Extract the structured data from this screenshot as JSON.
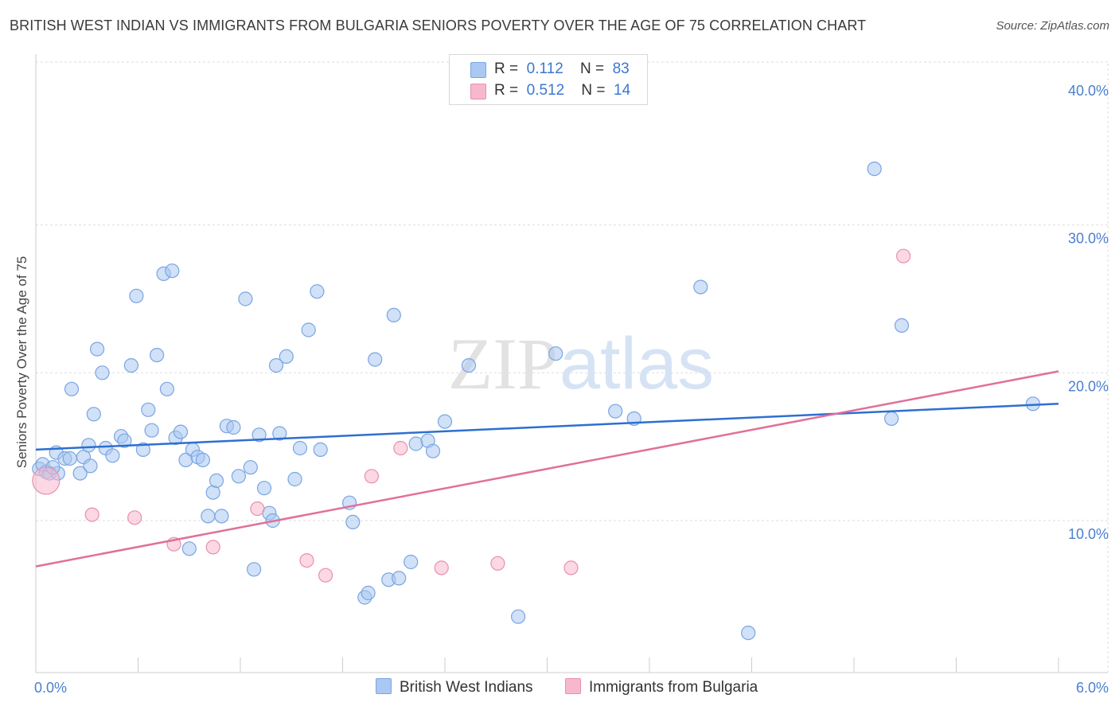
{
  "title": "BRITISH WEST INDIAN VS IMMIGRANTS FROM BULGARIA SENIORS POVERTY OVER THE AGE OF 75 CORRELATION CHART",
  "source": "Source: ZipAtlas.com",
  "watermark": {
    "zip": "ZIP",
    "atlas": "atlas"
  },
  "legend_stats": [
    {
      "r_label": "R =",
      "r_value": "0.112",
      "n_label": "N =",
      "n_value": "83"
    },
    {
      "r_label": "R =",
      "r_value": "0.512",
      "n_label": "N =",
      "n_value": "14"
    }
  ],
  "colors": {
    "blue_fill": "#a9c9f2",
    "blue_stroke": "#7aa5e0",
    "blue_line": "#2e6fd0",
    "pink_fill": "#f7b8cc",
    "pink_stroke": "#e890ad",
    "pink_line": "#e0709a",
    "tick_text": "#4a7fd0",
    "grid": "#dddddd"
  },
  "chart_data": {
    "type": "scatter",
    "ylabel": "Seniors Poverty Over the Age of 75",
    "xlim": [
      0,
      6
    ],
    "ylim": [
      0,
      40
    ],
    "x_tick_labels": [
      "0.0%",
      "6.0%"
    ],
    "y_ticks": [
      10,
      20,
      30,
      40
    ],
    "y_tick_labels": [
      "10.0%",
      "20.0%",
      "30.0%",
      "40.0%"
    ],
    "grid": true,
    "legend_position": "top-center",
    "series": [
      {
        "name": "British West Indians",
        "color": "#a9c9f2",
        "trend": {
          "x": [
            0,
            6
          ],
          "y": [
            14.8,
            17.9
          ]
        },
        "points": [
          [
            0.02,
            13.5
          ],
          [
            0.06,
            13.3
          ],
          [
            0.08,
            13.2
          ],
          [
            0.12,
            14.6
          ],
          [
            0.13,
            13.2
          ],
          [
            0.17,
            14.2
          ],
          [
            0.2,
            14.2
          ],
          [
            0.21,
            18.9
          ],
          [
            0.26,
            13.2
          ],
          [
            0.28,
            14.3
          ],
          [
            0.31,
            15.1
          ],
          [
            0.32,
            13.7
          ],
          [
            0.34,
            17.2
          ],
          [
            0.36,
            21.6
          ],
          [
            0.39,
            20.0
          ],
          [
            0.41,
            14.9
          ],
          [
            0.45,
            14.4
          ],
          [
            0.5,
            15.7
          ],
          [
            0.52,
            15.4
          ],
          [
            0.56,
            20.5
          ],
          [
            0.59,
            25.2
          ],
          [
            0.63,
            14.8
          ],
          [
            0.66,
            17.5
          ],
          [
            0.68,
            16.1
          ],
          [
            0.71,
            21.2
          ],
          [
            0.75,
            26.7
          ],
          [
            0.77,
            18.9
          ],
          [
            0.8,
            26.9
          ],
          [
            0.82,
            15.6
          ],
          [
            0.85,
            16.0
          ],
          [
            0.88,
            14.1
          ],
          [
            0.9,
            8.1
          ],
          [
            0.92,
            14.8
          ],
          [
            0.95,
            14.3
          ],
          [
            0.98,
            14.1
          ],
          [
            1.01,
            10.3
          ],
          [
            1.04,
            11.9
          ],
          [
            1.06,
            12.7
          ],
          [
            1.09,
            10.3
          ],
          [
            1.12,
            16.4
          ],
          [
            1.16,
            16.3
          ],
          [
            1.19,
            13.0
          ],
          [
            1.23,
            25.0
          ],
          [
            1.26,
            13.6
          ],
          [
            1.28,
            6.7
          ],
          [
            1.31,
            15.8
          ],
          [
            1.34,
            12.2
          ],
          [
            1.37,
            10.5
          ],
          [
            1.39,
            10.0
          ],
          [
            1.41,
            20.5
          ],
          [
            1.43,
            15.9
          ],
          [
            1.47,
            21.1
          ],
          [
            1.52,
            12.8
          ],
          [
            1.55,
            14.9
          ],
          [
            1.6,
            22.9
          ],
          [
            1.65,
            25.5
          ],
          [
            1.67,
            14.8
          ],
          [
            1.84,
            11.2
          ],
          [
            1.86,
            9.9
          ],
          [
            1.93,
            4.8
          ],
          [
            1.95,
            5.1
          ],
          [
            1.99,
            20.9
          ],
          [
            2.07,
            6.0
          ],
          [
            2.1,
            23.9
          ],
          [
            2.13,
            6.1
          ],
          [
            2.2,
            7.2
          ],
          [
            2.23,
            15.2
          ],
          [
            2.3,
            15.4
          ],
          [
            2.33,
            14.7
          ],
          [
            2.4,
            16.7
          ],
          [
            2.54,
            20.5
          ],
          [
            2.83,
            3.5
          ],
          [
            3.05,
            21.3
          ],
          [
            3.4,
            17.4
          ],
          [
            3.51,
            16.9
          ],
          [
            3.9,
            25.8
          ],
          [
            4.18,
            2.4
          ],
          [
            4.92,
            33.8
          ],
          [
            5.02,
            16.9
          ],
          [
            5.08,
            23.2
          ],
          [
            5.85,
            17.9
          ],
          [
            0.04,
            13.8
          ],
          [
            0.1,
            13.6
          ]
        ]
      },
      {
        "name": "Immigrants from Bulgaria",
        "color": "#f7b8cc",
        "trend": {
          "x": [
            0,
            6
          ],
          "y": [
            6.9,
            20.1
          ]
        },
        "points": [
          [
            0.06,
            12.7
          ],
          [
            0.33,
            10.4
          ],
          [
            0.58,
            10.2
          ],
          [
            0.81,
            8.4
          ],
          [
            1.04,
            8.2
          ],
          [
            1.3,
            10.8
          ],
          [
            1.59,
            7.3
          ],
          [
            1.7,
            6.3
          ],
          [
            1.97,
            13.0
          ],
          [
            2.14,
            14.9
          ],
          [
            2.38,
            6.8
          ],
          [
            2.71,
            7.1
          ],
          [
            3.14,
            6.8
          ],
          [
            5.09,
            27.9
          ]
        ]
      }
    ]
  }
}
